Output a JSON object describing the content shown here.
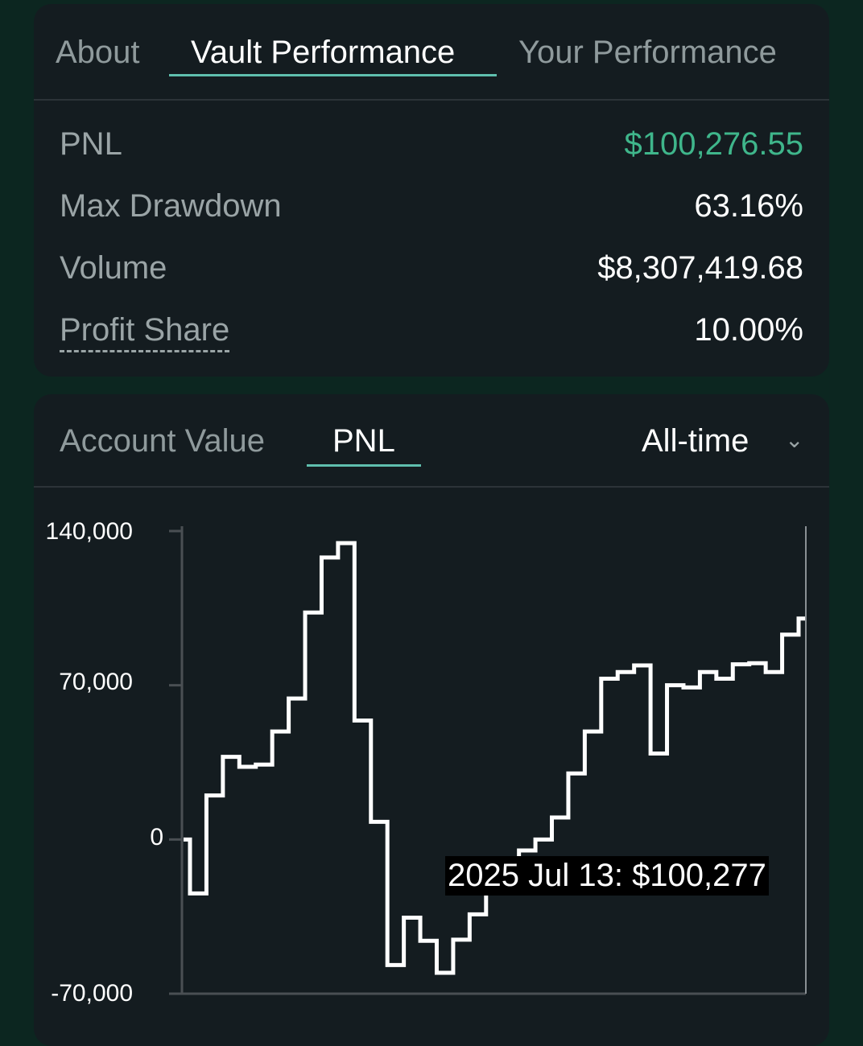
{
  "vault_tabs": [
    {
      "label": "About",
      "active": false
    },
    {
      "label": "Vault Performance",
      "active": true
    },
    {
      "label": "Your Performance",
      "active": false
    }
  ],
  "stats": {
    "pnl": {
      "label": "PNL",
      "value": "$100,276.55"
    },
    "max_drawdown": {
      "label": "Max Drawdown",
      "value": "63.16%"
    },
    "volume": {
      "label": "Volume",
      "value": "$8,307,419.68"
    },
    "profit_share": {
      "label": "Profit Share",
      "value": "10.00%"
    }
  },
  "chart_tabs": [
    {
      "label": "Account Value",
      "active": false
    },
    {
      "label": "PNL",
      "active": true
    }
  ],
  "range_select": {
    "value": "All-time",
    "icon": "chevron-down-icon"
  },
  "tooltip": "2025 Jul 13: $100,277",
  "colors": {
    "accent": "#5fbfae",
    "positive": "#3fb68b",
    "background": "#0c2620",
    "card": "#141c20"
  },
  "chart_data": {
    "type": "line",
    "step": true,
    "ylim": [
      -70000,
      140000
    ],
    "yticks": [
      "140,000",
      "70,000",
      "0",
      "-70,000"
    ],
    "ytick_values": [
      140000,
      70000,
      0,
      -70000
    ],
    "values": [
      0,
      -24500,
      20000,
      37500,
      33000,
      34000,
      49000,
      64000,
      103000,
      128000,
      134500,
      54000,
      8000,
      -57000,
      -35500,
      -46000,
      -60500,
      -45500,
      -34000,
      -20000,
      -10000,
      -5000,
      0,
      10000,
      30000,
      49000,
      73000,
      76000,
      79000,
      39000,
      70000,
      69000,
      76000,
      73000,
      79500,
      80000,
      76000,
      93000,
      100277
    ],
    "line_color": "#ffffff",
    "grid": false
  }
}
